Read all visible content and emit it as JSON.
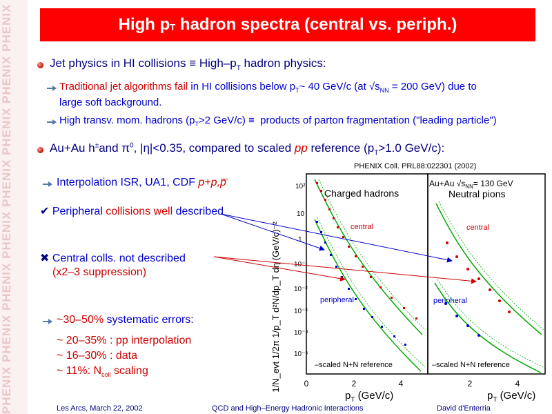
{
  "sidebar": {
    "brand": "PHENIX"
  },
  "title": {
    "main": "High p",
    "sub": "T",
    "rest": " hadron spectra (central vs. periph.)"
  },
  "bullet1": {
    "a": "Jet physics in HI collisions ",
    "equiv": "≡",
    "b": " High–p",
    "sub": "T",
    "c": " hadron physics:"
  },
  "sub1": {
    "line1_a": "Traditional jet algorithms fail",
    "line1_b": " in HI collisions below p",
    "line1_sub": "T",
    "line1_c": "~ 40 GeV/c (at √s",
    "line1_sub2": "NN",
    "line1_d": " = 200 GeV) due to",
    "line2": "large soft background."
  },
  "sub2": {
    "a": "High transv. mom. hadrons (p",
    "sub": "T",
    "b": ">2 GeV/c) ≡  products of parton fragmentation (\"leading particle\")"
  },
  "bullet2": {
    "a": "Au+Au h",
    "sup": "±",
    "b": "and π",
    "sup2": "0",
    "c": ", |η|<0.35, compared to scaled ",
    "pp": "pp",
    "d": " reference (p",
    "sub": "T",
    "e": ">1.0 GeV/c):"
  },
  "citation": "PHENIX Coll. PRL88:022301 (2002)",
  "left_items": {
    "interp": "Interpolation ISR, UA1, CDF ",
    "interp_it": "p+p,p̅",
    "periph_check": "✔",
    "periph_a": "Peripheral",
    "periph_b": " collisions well ",
    "periph_c": "described",
    "central_x": "✖",
    "central_a": "Central colls. not described",
    "central_b": "(x2–3 suppression)",
    "sys_a": "~30–50%",
    "sys_b": " systematic errors:",
    "err1": "~ 20–35% : pp interpolation",
    "err2": "~ 16–30% : data",
    "err3_a": "~ 11%: N",
    "err3_sub": "coll",
    "err3_b": " scaling"
  },
  "plot": {
    "ylabel": "1/N_evt 1/2π 1/p_T d²N/dp_T dη (GeV/c)⁻²",
    "panel_left_title": "Charged hadrons",
    "panel_right_title": "Neutral pions",
    "auau": "Au+Au √s",
    "auau_sub": "NN",
    "auau_b": "= 130 GeV",
    "central": "central",
    "peripheral": "peripheral",
    "scaled_ref": "–scaled N+N reference",
    "xlabel": "p",
    "xlabel_sub": "T",
    "xlabel_b": " (GeV/c)",
    "yticks": [
      "10²",
      "10",
      "1",
      "10⁻¹",
      "10⁻²",
      "10⁻³",
      "10⁻⁴",
      "10⁻⁵"
    ],
    "xticks_left": [
      "0",
      "2",
      "4"
    ],
    "xticks_right": [
      "2",
      "4"
    ]
  },
  "footer": {
    "left": "Les Arcs, March 22, 2002",
    "center": "QCD and High–Energy Hadronic Interactions",
    "right": "David d'Enterria"
  }
}
